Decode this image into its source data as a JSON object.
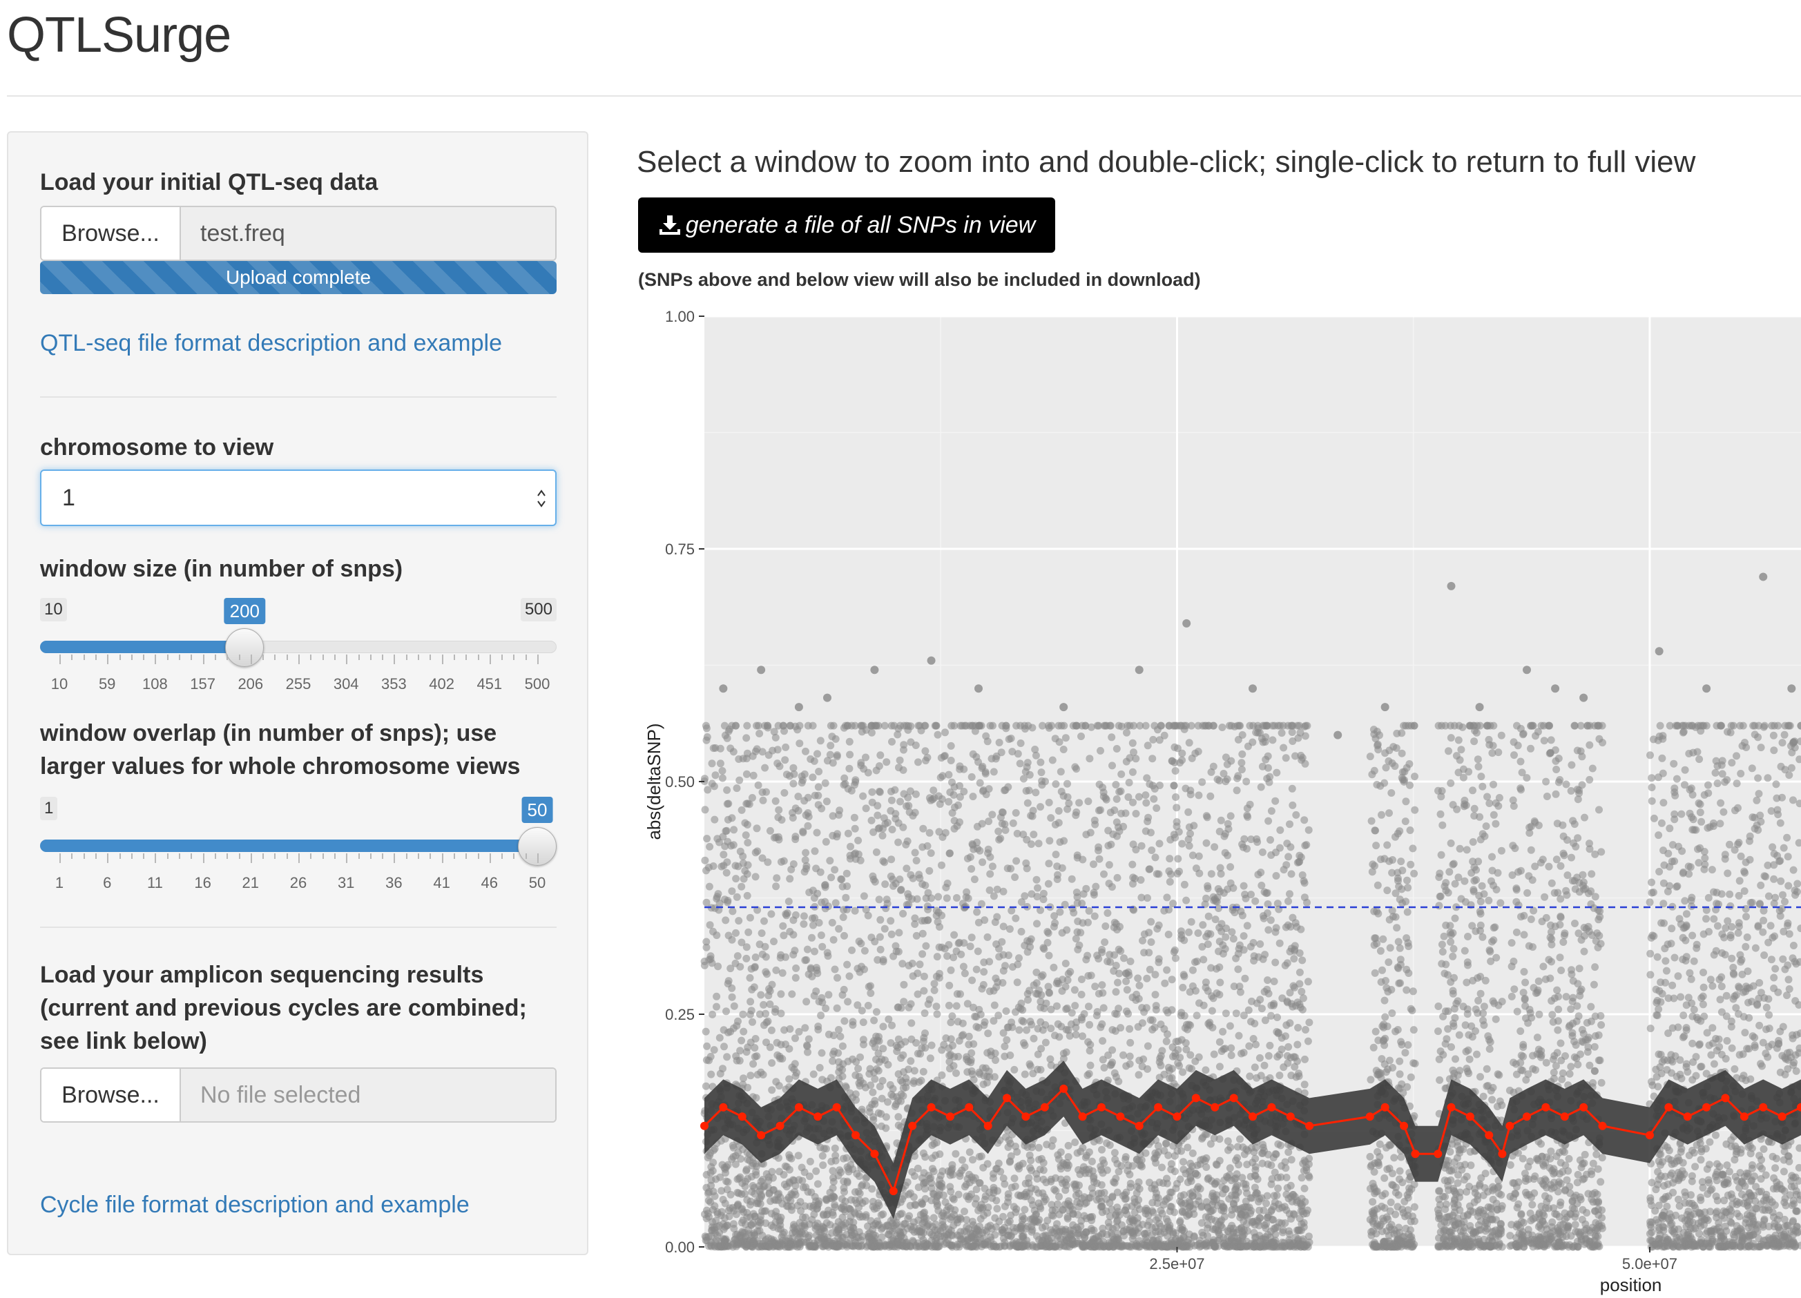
{
  "app": {
    "title": "QTLSurge"
  },
  "sidebar": {
    "qtl_upload": {
      "label": "Load your initial QTL-seq data",
      "browse_label": "Browse...",
      "file_name": "test.freq",
      "progress_text": "Upload complete",
      "progress": 1.0
    },
    "qtl_format_link": "QTL-seq file format description and example",
    "chromosome": {
      "label": "chromosome to view",
      "value": "1"
    },
    "window_size": {
      "label": "window size (in number of snps)",
      "min": 10,
      "max": 500,
      "value": 200,
      "min_label": "10",
      "max_label": "500",
      "value_label": "200",
      "ticks": [
        "10",
        "59",
        "108",
        "157",
        "206",
        "255",
        "304",
        "353",
        "402",
        "451",
        "500"
      ]
    },
    "window_overlap": {
      "label": "window overlap (in number of snps); use larger values for whole chromosome views",
      "min": 1,
      "max": 50,
      "value": 50,
      "min_label": "1",
      "max_label": "50",
      "value_label": "50",
      "ticks": [
        "1",
        "6",
        "11",
        "16",
        "21",
        "26",
        "31",
        "36",
        "41",
        "46",
        "50"
      ]
    },
    "amplicon_upload": {
      "label": "Load your amplicon sequencing results (current and previous cycles are combined; see link below)",
      "browse_label": "Browse...",
      "file_name": "No file selected"
    },
    "cycle_format_link": "Cycle file format description and example"
  },
  "main": {
    "heading": "Select a window to zoom into and double-click; single-click to return to full view",
    "download_button": "generate a file of all SNPs in view",
    "download_icon": "download-icon",
    "note": "(SNPs above and below view will also be included in download)"
  },
  "colors": {
    "accent": "#337ab7",
    "slider_blue": "#428bca",
    "panel_bg": "#ebebeb",
    "points": "#888888",
    "ribbon": "#3c3c3c",
    "line": "#ff2200",
    "threshold": "#2a3fd6"
  },
  "chart_data": {
    "type": "scatter",
    "title": "",
    "xlabel": "position",
    "ylabel": "abs(deltaSNP)",
    "xlim": [
      0,
      58000000
    ],
    "ylim": [
      0,
      1
    ],
    "y_ticks": [
      0,
      0.25,
      0.5,
      0.75,
      1
    ],
    "y_tick_labels": [
      "0.00",
      "0.25",
      "0.50",
      "0.75",
      "1.00"
    ],
    "x_ticks": [
      25000000,
      50000000
    ],
    "x_tick_labels": [
      "2.5e+07",
      "5.0e+07"
    ],
    "grid": true,
    "threshold": 0.365,
    "data_gaps": [
      [
        32000000,
        35200000
      ],
      [
        37600000,
        38800000
      ],
      [
        42200000,
        42600000
      ],
      [
        47500000,
        50000000
      ]
    ],
    "series": [
      {
        "kind": "scatter",
        "note": "SNP points (dense cloud); sampled representative values",
        "x": [
          1000000,
          3000000,
          5000000,
          6500000,
          9000000,
          12000000,
          14500000,
          19000000,
          23000000,
          25500000,
          29000000,
          33500000,
          36000000,
          39500000,
          41000000,
          43500000,
          45000000,
          46500000,
          50500000,
          53000000,
          56000000,
          57500000
        ],
        "y": [
          0.6,
          0.62,
          0.58,
          0.59,
          0.62,
          0.63,
          0.6,
          0.58,
          0.62,
          0.67,
          0.6,
          0.55,
          0.58,
          0.71,
          0.58,
          0.62,
          0.6,
          0.59,
          0.64,
          0.6,
          0.72,
          0.6
        ]
      },
      {
        "kind": "line",
        "note": "windowed mean with confidence ribbon",
        "x": [
          0,
          1000000,
          2000000,
          3000000,
          4000000,
          5000000,
          6000000,
          7000000,
          8000000,
          9000000,
          10000000,
          11000000,
          12000000,
          13000000,
          14000000,
          15000000,
          16000000,
          17000000,
          18000000,
          19000000,
          20000000,
          21000000,
          22000000,
          23000000,
          24000000,
          25000000,
          26000000,
          27000000,
          28000000,
          29000000,
          30000000,
          31000000,
          32000000,
          35200000,
          36000000,
          37000000,
          37600000,
          38800000,
          39500000,
          40500000,
          41500000,
          42200000,
          42600000,
          43500000,
          44500000,
          45500000,
          46500000,
          47500000,
          50000000,
          51000000,
          52000000,
          53000000,
          54000000,
          55000000,
          56000000,
          57000000,
          58000000
        ],
        "y": [
          0.13,
          0.15,
          0.14,
          0.12,
          0.13,
          0.15,
          0.14,
          0.15,
          0.12,
          0.1,
          0.06,
          0.13,
          0.15,
          0.14,
          0.15,
          0.13,
          0.16,
          0.14,
          0.15,
          0.17,
          0.14,
          0.15,
          0.14,
          0.13,
          0.15,
          0.14,
          0.16,
          0.15,
          0.16,
          0.14,
          0.15,
          0.14,
          0.13,
          0.14,
          0.15,
          0.13,
          0.1,
          0.1,
          0.15,
          0.14,
          0.12,
          0.1,
          0.13,
          0.14,
          0.15,
          0.14,
          0.15,
          0.13,
          0.12,
          0.15,
          0.14,
          0.15,
          0.16,
          0.14,
          0.15,
          0.14,
          0.15
        ]
      }
    ]
  }
}
